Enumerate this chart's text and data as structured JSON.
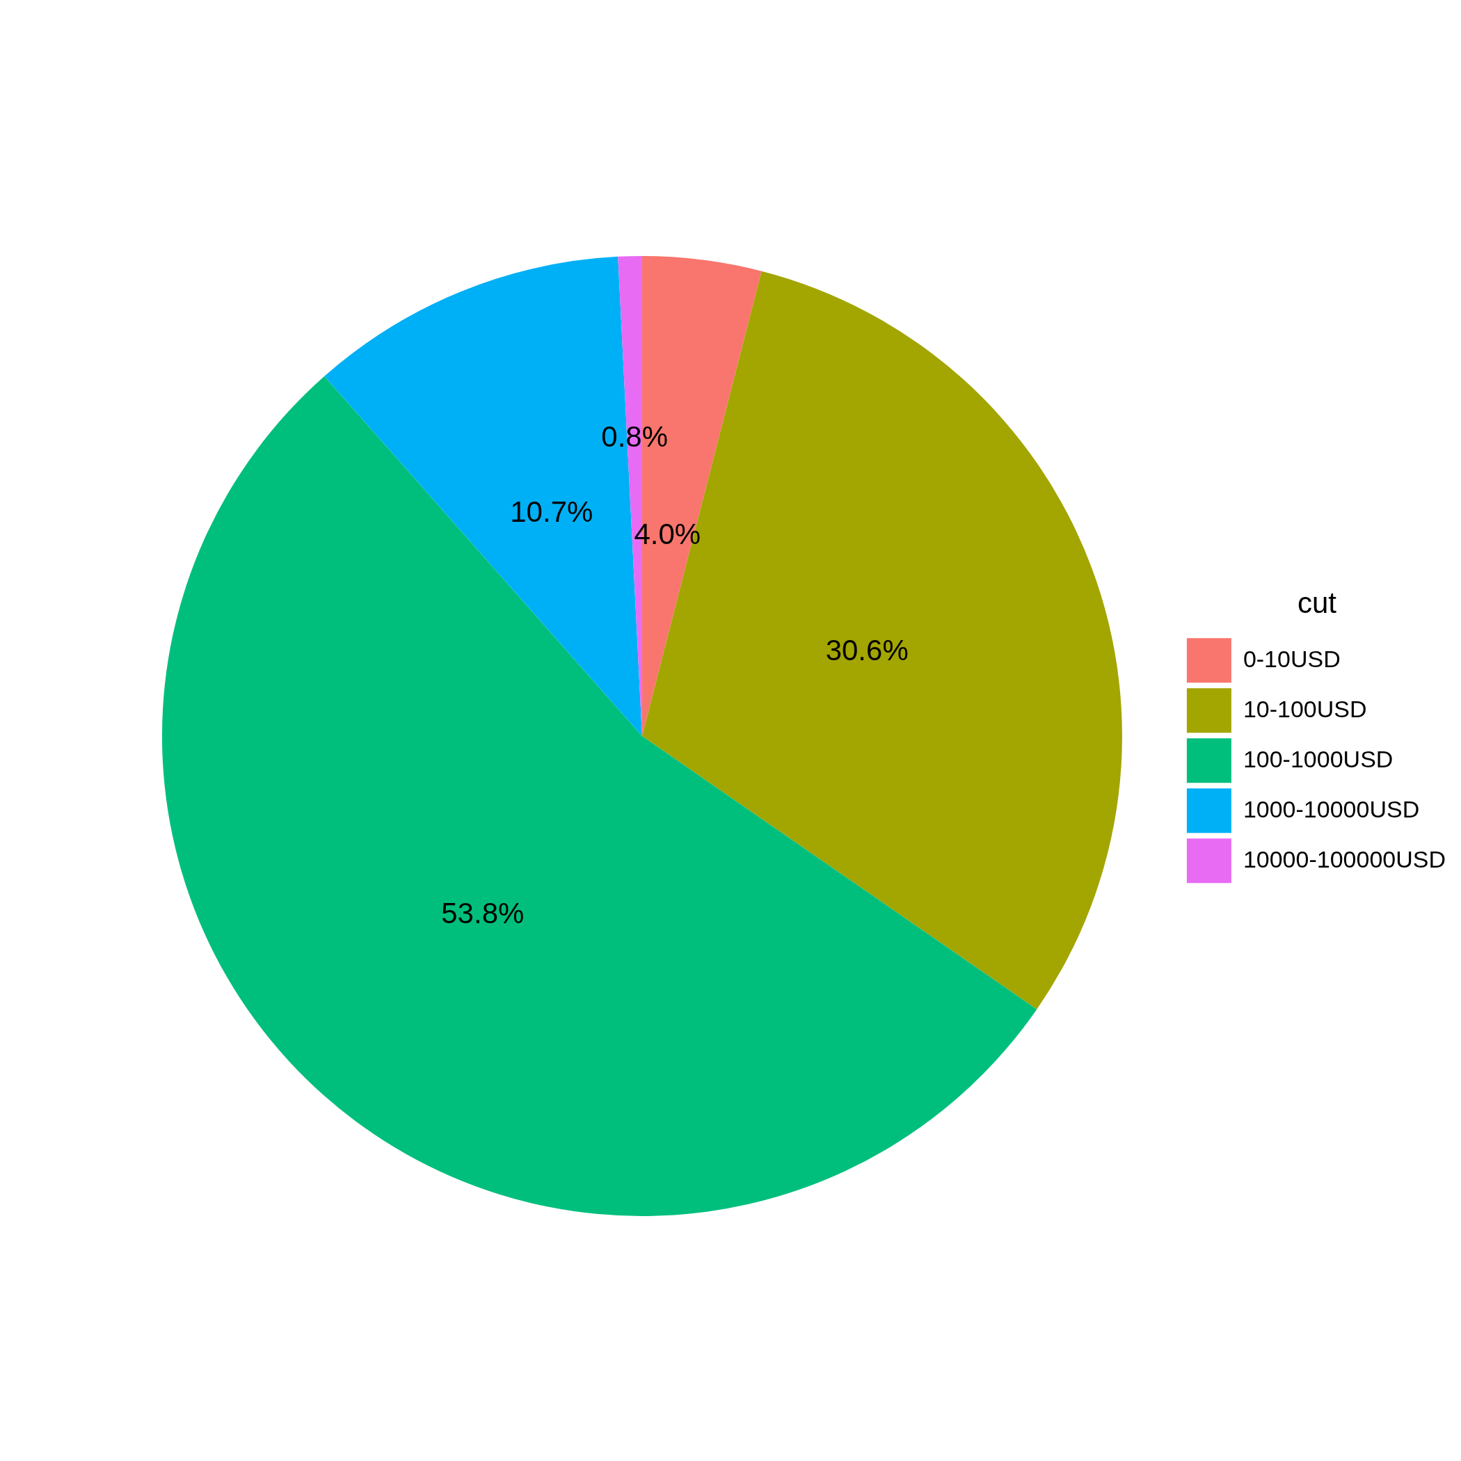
{
  "chart_data": {
    "type": "pie",
    "legend_title": "cut",
    "categories": [
      "0-10USD",
      "10-100USD",
      "100-1000USD",
      "1000-10000USD",
      "10000-100000USD"
    ],
    "values": [
      4.0,
      30.6,
      53.8,
      10.7,
      0.8
    ],
    "colors": [
      "#f8766d",
      "#a3a500",
      "#00bf7d",
      "#00b0f6",
      "#e76bf3"
    ],
    "value_labels": [
      "4.0%",
      "30.6%",
      "53.8%",
      "10.7%",
      "0.8%"
    ],
    "legend": "right"
  }
}
